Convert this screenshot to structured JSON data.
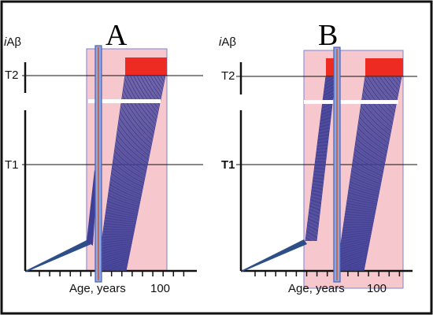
{
  "figure": {
    "panels": [
      {
        "letter": "A",
        "y_axis_label": "iAβ",
        "thresholds": [
          "T2",
          "T1"
        ],
        "x_axis_label": "Age, years",
        "x_tick_label": "100",
        "red_blocks": 1
      },
      {
        "letter": "B",
        "y_axis_label": "iAβ",
        "thresholds": [
          "T2",
          "T1"
        ],
        "x_axis_label": "Age, years",
        "x_tick_label": "100",
        "red_blocks": 2
      }
    ],
    "colors": {
      "curve": "#3f3f96",
      "curve_dark": "#2e4e88",
      "shaded_region": "#f6c7cc",
      "region_border": "#7b86d6",
      "red_block": "#ee2b22",
      "blue_bar": "#8ea8de"
    }
  }
}
